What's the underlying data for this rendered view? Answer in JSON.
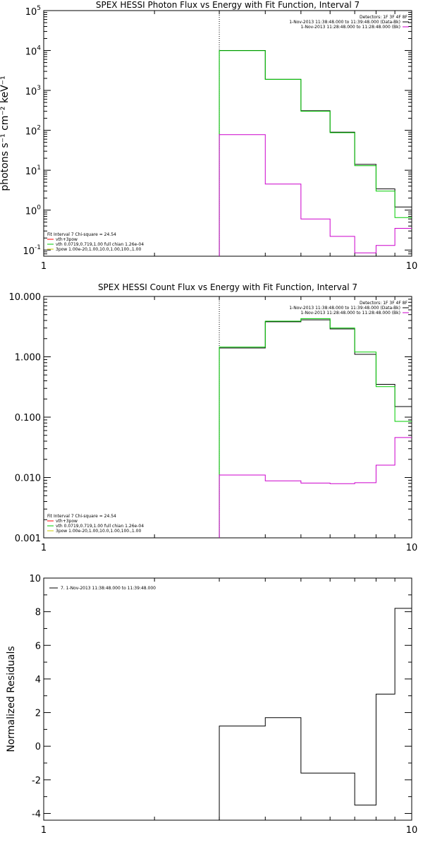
{
  "chart_data": [
    {
      "type": "line",
      "title": "SPEX HESSI Photon Flux vs Energy with Fit Function, Interval 7",
      "ylabel": "photons s⁻¹ cm⁻² keV⁻¹",
      "xscale": "log",
      "yscale": "log",
      "xlim": [
        1,
        10
      ],
      "ylim": [
        0.07,
        100000
      ],
      "xticks": [
        {
          "v": 1,
          "label": "1"
        },
        {
          "v": 10,
          "label": "10"
        }
      ],
      "yticks": [
        {
          "v": 0.1,
          "b": "10",
          "e": "-1"
        },
        {
          "v": 1,
          "b": "10",
          "e": "0"
        },
        {
          "v": 10,
          "b": "10",
          "e": "1"
        },
        {
          "v": 100,
          "b": "10",
          "e": "2"
        },
        {
          "v": 1000,
          "b": "10",
          "e": "3"
        },
        {
          "v": 10000,
          "b": "10",
          "e": "4"
        },
        {
          "v": 100000,
          "b": "10",
          "e": "5"
        }
      ],
      "vline": 3,
      "edges": [
        3,
        4,
        5,
        6,
        7,
        8,
        9,
        10
      ],
      "series": [
        {
          "color": "#000000",
          "values": [
            10000,
            1900,
            310,
            90,
            14,
            3.4,
            1.2
          ]
        },
        {
          "color": "#00cc00",
          "values": [
            9900,
            1900,
            300,
            87,
            13,
            3.0,
            0.65
          ]
        },
        {
          "color": "#cc00cc",
          "values": [
            78,
            4.5,
            0.6,
            0.22,
            0.085,
            0.13,
            0.35
          ]
        }
      ],
      "legend_tr": [
        {
          "text": "Detectors: 1F 3F 4F 8F",
          "color": null
        },
        {
          "text": "1-Nov-2013 11:38:48.000 to 11:39:48.000 (Data-Bk)",
          "color": "#000000"
        },
        {
          "text": "1-Nov-2013 11:28:48.000 to 11:28:48.000 (Bk)",
          "color": "#cc00cc"
        }
      ],
      "legend_bl": [
        {
          "text": "Fit Interval 7    Chi-square = 24.54",
          "color": null
        },
        {
          "text": "vth+3pow",
          "color": "#ff0000"
        },
        {
          "text": "vth 0.0719,0.719,1.00  full chian 1.26e-04",
          "color": "#00cc00"
        },
        {
          "text": "3pow 1.00e-20,1.00,10.0,1.00,100.,1.00",
          "color": "#cccc00"
        }
      ]
    },
    {
      "type": "line",
      "title": "SPEX HESSI Count Flux vs Energy with Fit Function, Interval 7",
      "ylabel": "",
      "xscale": "log",
      "yscale": "log",
      "xlim": [
        1,
        10
      ],
      "ylim": [
        0.001,
        10
      ],
      "xticks": [
        {
          "v": 1,
          "label": "1"
        },
        {
          "v": 10,
          "label": "10"
        }
      ],
      "yticks": [
        {
          "v": 0.001,
          "label": "0.001"
        },
        {
          "v": 0.01,
          "label": "0.010"
        },
        {
          "v": 0.1,
          "label": "0.100"
        },
        {
          "v": 1,
          "label": "1.000"
        },
        {
          "v": 10,
          "label": "10.000"
        }
      ],
      "vline": 3,
      "edges": [
        3,
        4,
        5,
        6,
        7,
        8,
        9,
        10
      ],
      "series": [
        {
          "color": "#000000",
          "values": [
            1.4,
            3.8,
            4.1,
            2.9,
            1.1,
            0.35,
            0.15
          ]
        },
        {
          "color": "#00cc00",
          "values": [
            1.45,
            3.9,
            4.3,
            3.0,
            1.2,
            0.32,
            0.085
          ]
        },
        {
          "color": "#cc00cc",
          "values": [
            0.011,
            0.0088,
            0.0081,
            0.0079,
            0.0082,
            0.016,
            0.046
          ]
        }
      ],
      "legend_tr": [
        {
          "text": "Detectors: 1F 3F 4F 8F",
          "color": null
        },
        {
          "text": "1-Nov-2013 11:38:48.000 to 11:39:48.000 (Data-Bk)",
          "color": "#000000"
        },
        {
          "text": "1-Nov-2013 11:28:48.000 to 11:28:48.000 (Bk)",
          "color": "#cc00cc"
        }
      ],
      "legend_bl": [
        {
          "text": "Fit Interval 7    Chi-square = 24.54",
          "color": null
        },
        {
          "text": "vth+3pow",
          "color": "#ff0000"
        },
        {
          "text": "vth 0.0719,0.719,1.00  full chian 1.26e-04",
          "color": "#00cc00"
        },
        {
          "text": "3pow 1.00e-20,1.00,10.0,1.00,100.,1.00",
          "color": "#cccc00"
        }
      ]
    },
    {
      "type": "line",
      "title": "",
      "ylabel": "Normalized Residuals",
      "xscale": "log",
      "yscale": "linear",
      "xlim": [
        1,
        10
      ],
      "ylim": [
        -4.4,
        10
      ],
      "xticks": [
        {
          "v": 1,
          "label": "1"
        },
        {
          "v": 10,
          "label": "10"
        }
      ],
      "yticks": [
        {
          "v": -4,
          "label": "-4"
        },
        {
          "v": -2,
          "label": "-2"
        },
        {
          "v": 0,
          "label": "0"
        },
        {
          "v": 2,
          "label": "2"
        },
        {
          "v": 4,
          "label": "4"
        },
        {
          "v": 6,
          "label": "6"
        },
        {
          "v": 8,
          "label": "8"
        },
        {
          "v": 10,
          "label": "10"
        }
      ],
      "vline": null,
      "edges": [
        3,
        4,
        5,
        6,
        7,
        8,
        9,
        10
      ],
      "series": [
        {
          "color": "#000000",
          "values": [
            1.2,
            1.7,
            -1.6,
            -1.6,
            -3.5,
            3.1,
            8.2
          ]
        }
      ],
      "legend_tr": [],
      "legend_bl": [],
      "legend_tl": [
        {
          "text": "7.  1-Nov-2013 11:38:48.000 to 11:39:48.000",
          "color": "#000000"
        }
      ]
    }
  ]
}
